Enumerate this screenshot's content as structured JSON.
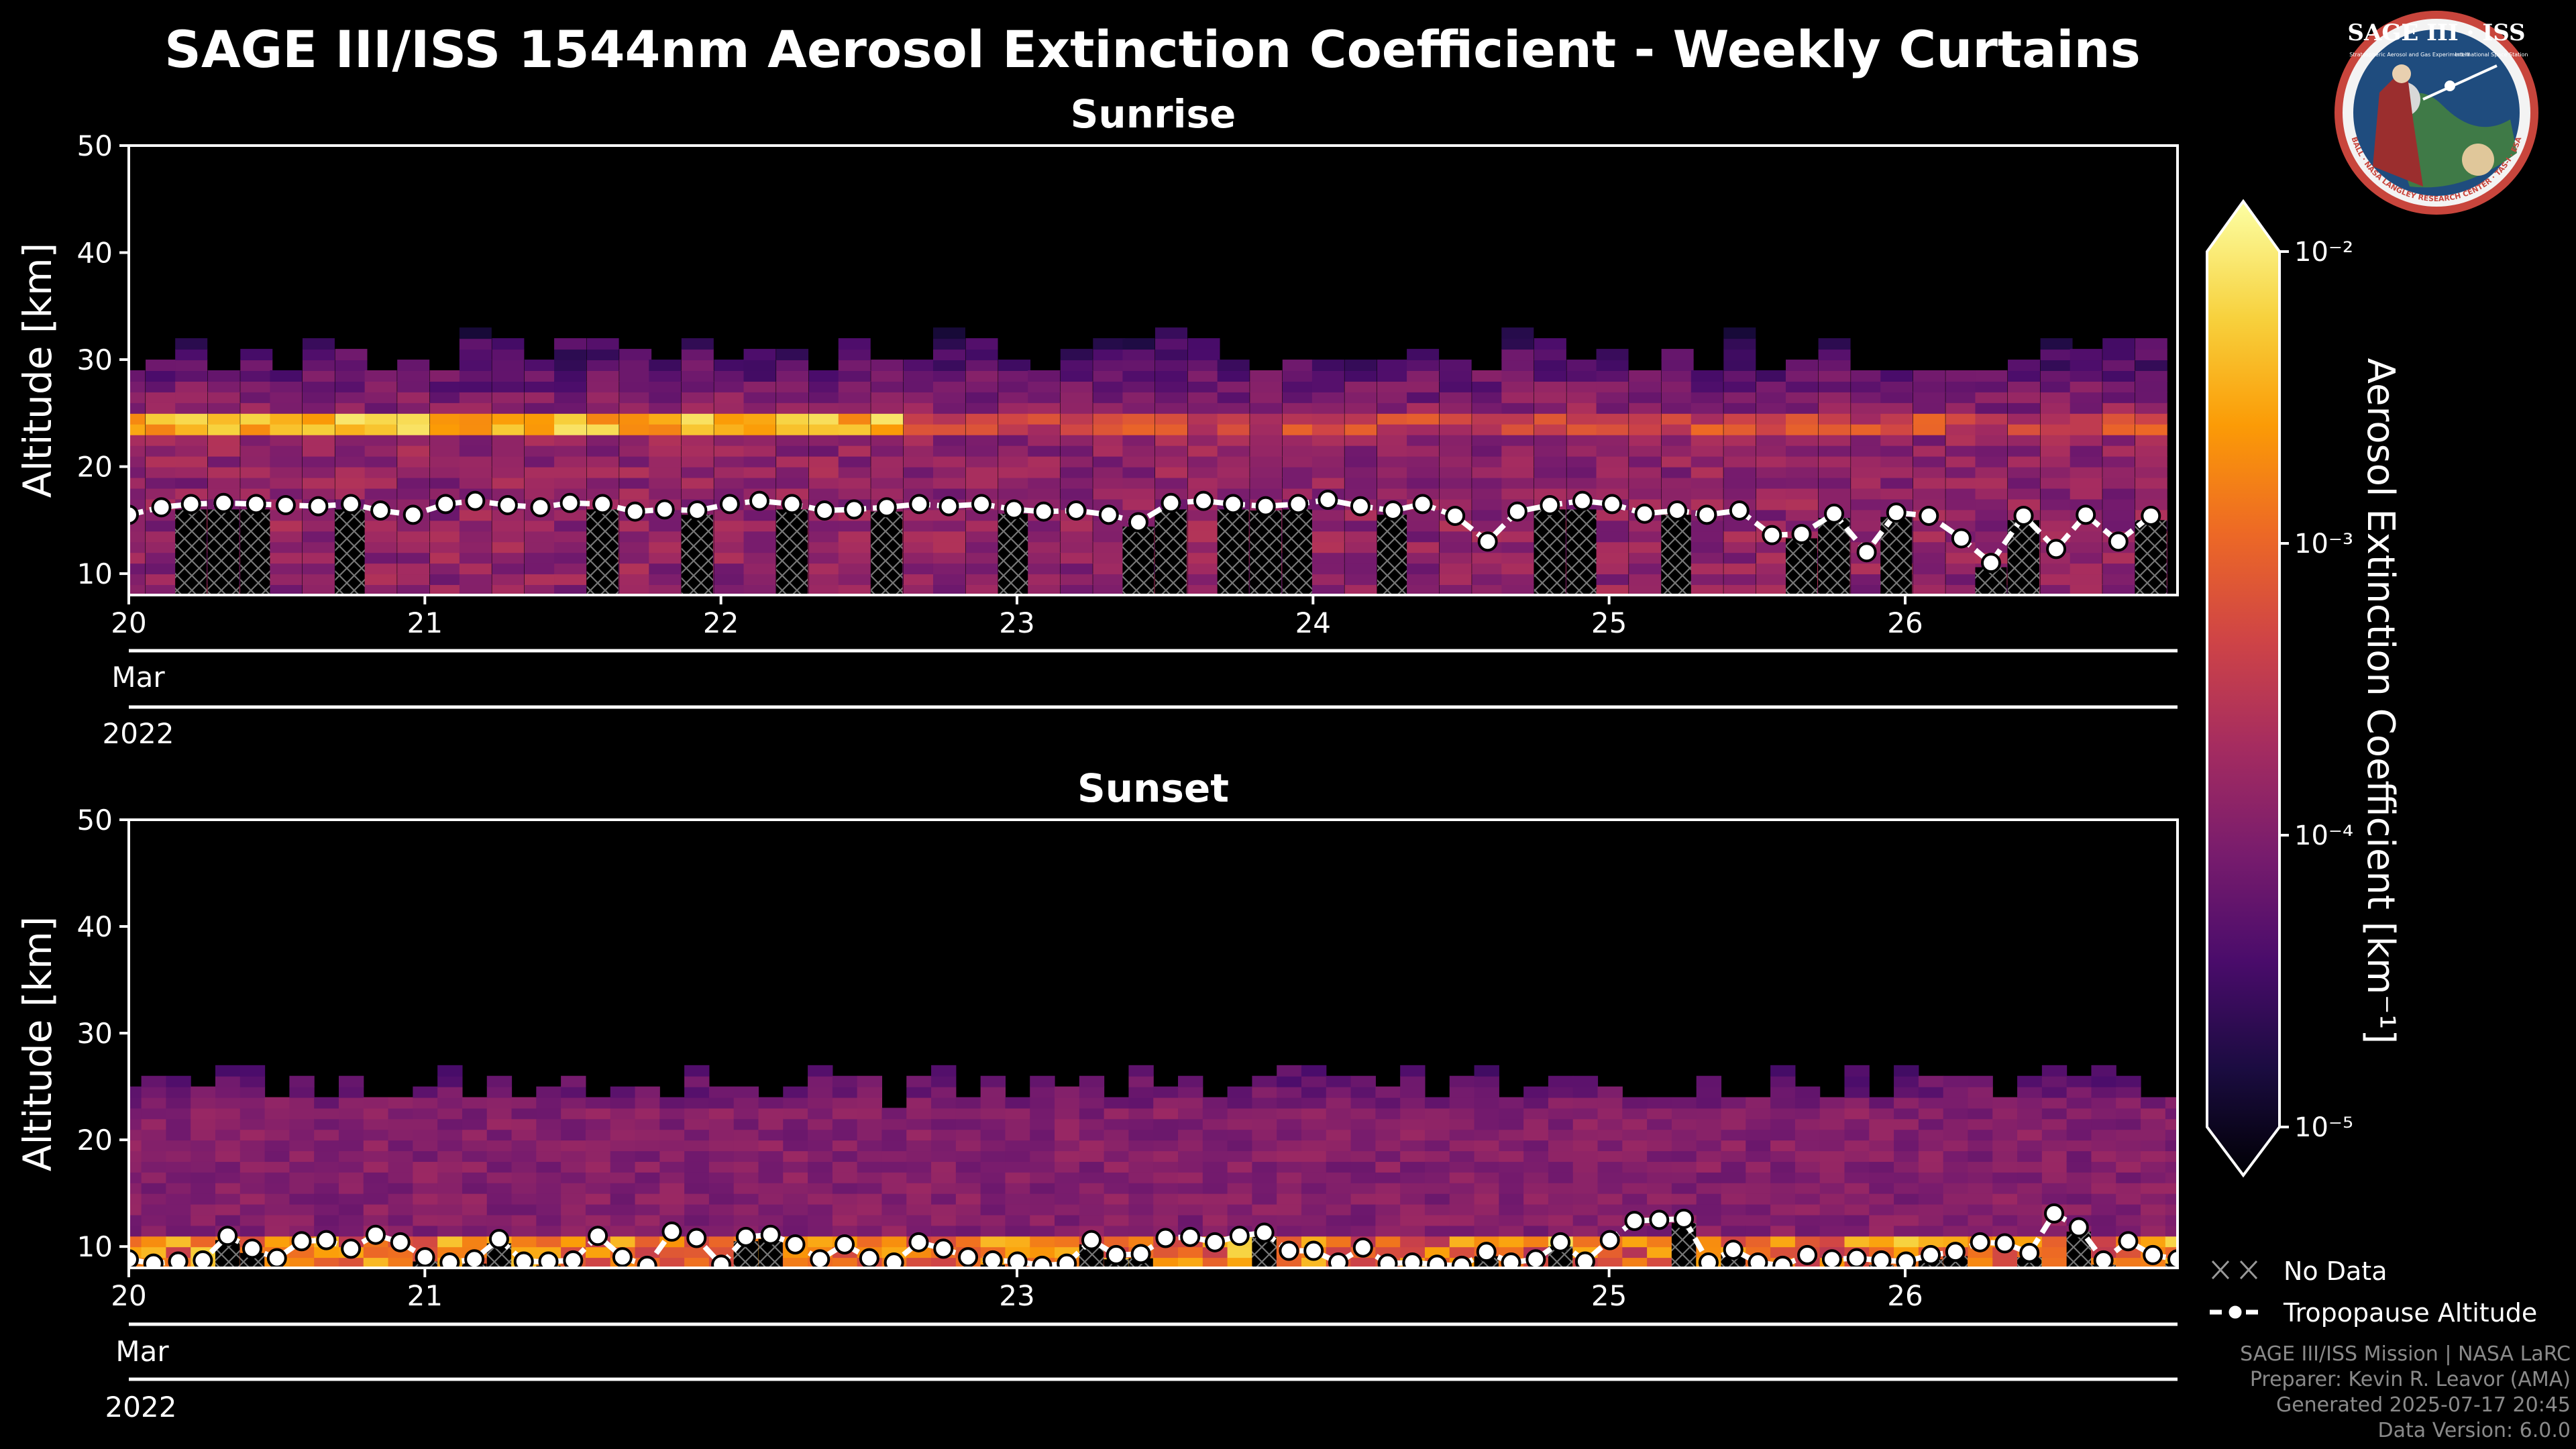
{
  "title": "SAGE III/ISS 1544nm Aerosol Extinction Coefficient - Weekly Curtains",
  "logo": {
    "text": "SAGE III · ISS",
    "subtitle": "Stratospheric Aerosol and Gas Experiment III",
    "subtitle2": "International Space Station",
    "ring_text": "BALL · NASA LANGLEY RESEARCH CENTER · TAS-I · ESA"
  },
  "colors": {
    "background": "#000000",
    "axes": "#ffffff",
    "tropopause": "#ffffff",
    "colormap": [
      "#000004",
      "#1b0c41",
      "#4a0c6b",
      "#781c6d",
      "#a52c60",
      "#cf4446",
      "#ed6925",
      "#fb9b06",
      "#f7d13d",
      "#fcffa4"
    ]
  },
  "chart_data": [
    {
      "type": "heatmap",
      "title": "Sunrise",
      "ylabel": "Altitude [km]",
      "ylim": [
        8,
        50
      ],
      "yticks": [
        10,
        20,
        30,
        40,
        50
      ],
      "xlim": [
        20.0,
        26.92
      ],
      "xticks": [
        {
          "value": 20,
          "label": "20"
        },
        {
          "value": 21,
          "label": "21"
        },
        {
          "value": 22,
          "label": "22"
        },
        {
          "value": 23,
          "label": "23"
        },
        {
          "value": 24,
          "label": "24"
        },
        {
          "value": 25,
          "label": "25"
        },
        {
          "value": 26,
          "label": "26"
        }
      ],
      "month_label": "Mar",
      "year_label": "2022",
      "profile_times": [
        20.0,
        20.11,
        20.21,
        20.32,
        20.43,
        20.53,
        20.64,
        20.75,
        20.85,
        20.96,
        21.07,
        21.17,
        21.28,
        21.39,
        21.49,
        21.6,
        21.71,
        21.81,
        21.92,
        22.03,
        22.13,
        22.24,
        22.35,
        22.45,
        22.56,
        22.67,
        22.77,
        22.88,
        22.99,
        23.09,
        23.2,
        23.31,
        23.41,
        23.52,
        23.63,
        23.73,
        23.84,
        23.95,
        24.05,
        24.16,
        24.27,
        24.37,
        24.48,
        24.59,
        24.69,
        24.8,
        24.91,
        25.01,
        25.12,
        25.23,
        25.33,
        25.44,
        25.55,
        25.65,
        25.76,
        25.87,
        25.97,
        26.08,
        26.19,
        26.29,
        26.4,
        26.51,
        26.61,
        26.72,
        26.83
      ],
      "tropopause_km": [
        15.5,
        16.2,
        16.5,
        16.6,
        16.5,
        16.4,
        16.3,
        16.5,
        15.9,
        15.5,
        16.5,
        16.8,
        16.4,
        16.2,
        16.6,
        16.5,
        15.8,
        16.0,
        15.9,
        16.5,
        16.8,
        16.5,
        15.9,
        16.0,
        16.2,
        16.5,
        16.3,
        16.5,
        16.0,
        15.8,
        15.9,
        15.5,
        14.8,
        16.6,
        16.8,
        16.5,
        16.3,
        16.5,
        16.9,
        16.3,
        15.9,
        16.5,
        15.4,
        13.0,
        15.8,
        16.4,
        16.8,
        16.5,
        15.6,
        15.9,
        15.5,
        15.9,
        13.6,
        13.7,
        15.6,
        12.0,
        15.7,
        15.4,
        13.3,
        11.0,
        15.4,
        12.3,
        15.5,
        13.0,
        15.4
      ],
      "aerosol_layer_km": [
        22.5,
        24.5
      ],
      "no_data_band_km": [
        8,
        16
      ],
      "zlabel": "Aerosol Extinction Coefficient [km⁻¹]"
    },
    {
      "type": "heatmap",
      "title": "Sunset",
      "ylabel": "Altitude [km]",
      "ylim": [
        8,
        50
      ],
      "yticks": [
        10,
        20,
        30,
        40,
        50
      ],
      "xlim": [
        20.0,
        26.92
      ],
      "xticks": [
        {
          "value": 20,
          "label": "20"
        },
        {
          "value": 21,
          "label": "21"
        },
        {
          "value": 23,
          "label": "23"
        },
        {
          "value": 25,
          "label": "25"
        },
        {
          "value": 26,
          "label": "26"
        }
      ],
      "month_label": "Mar",
      "year_label": "2022",
      "tropopause_km": [
        8.8,
        8.4,
        8.6,
        8.7,
        11.0,
        9.8,
        8.9,
        10.5,
        10.6,
        9.8,
        11.1,
        10.4,
        9.0,
        8.5,
        8.8,
        10.7,
        8.6,
        8.6,
        8.7,
        11.0,
        9.0,
        8.2,
        11.4,
        10.8,
        8.3,
        10.9,
        11.1,
        10.2,
        8.8,
        10.2,
        8.9,
        8.5,
        10.4,
        9.8,
        9.0,
        8.7,
        8.6,
        8.2,
        8.4,
        10.6,
        9.2,
        9.3,
        10.8,
        10.9,
        10.4,
        11.0,
        11.3,
        9.6,
        9.6,
        8.5,
        9.9,
        8.4,
        8.5,
        8.3,
        8.2,
        9.5,
        8.5,
        8.8,
        10.4,
        8.6,
        10.6,
        12.4,
        12.5,
        12.6,
        8.5,
        9.7,
        8.5,
        8.2,
        9.2,
        8.8,
        8.9,
        8.7,
        8.6,
        9.2,
        9.5,
        10.4,
        10.3,
        9.4,
        13.1,
        11.8,
        8.7,
        10.5,
        9.2,
        8.8
      ],
      "aerosol_layer_km": [
        16,
        22
      ],
      "no_data_band_km": [
        8,
        13
      ]
    }
  ],
  "colorbar": {
    "label": "Aerosol Extinction Coefficient [km⁻¹]",
    "scale": "log",
    "vmin": 1e-05,
    "vmax": 0.01,
    "ticks": [
      {
        "exp": -2,
        "label": "10⁻²"
      },
      {
        "exp": -3,
        "label": "10⁻³"
      },
      {
        "exp": -4,
        "label": "10⁻⁴"
      },
      {
        "exp": -5,
        "label": "10⁻⁵"
      }
    ]
  },
  "legend": {
    "no_data": "No Data",
    "tropopause": "Tropopause Altitude"
  },
  "credits": [
    "SAGE III/ISS Mission | NASA LaRC",
    "Preparer: Kevin R. Leavor (AMA)",
    "Generated 2025-07-17 20:45",
    "Data Version: 6.0.0"
  ]
}
